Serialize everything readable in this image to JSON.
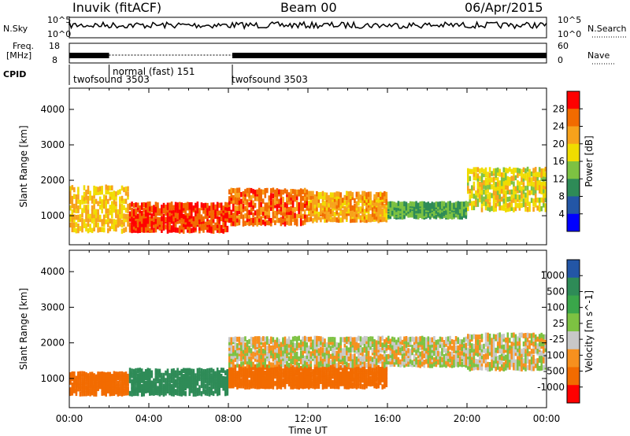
{
  "header": {
    "station": "Inuvik (fitACF)",
    "beam": "Beam 00",
    "date": "06/Apr/2015"
  },
  "panels": {
    "nsky_label": "N.Sky",
    "nsky_ticks": [
      "10^5",
      "10^0"
    ],
    "nsearch_label": "N.Search",
    "freq_label_line1": "Freq.",
    "freq_label_line2": "[MHz]",
    "freq_ticks_left": [
      "18",
      "8"
    ],
    "nave_ticks_right": [
      "60",
      "0"
    ],
    "nave_label": "Nave",
    "cpid_label": "CPID",
    "cpid_segments": [
      "twofsound 3503",
      "normal (fast) 151",
      "twofsound 3503"
    ]
  },
  "colors": {
    "power": [
      "#0000ff",
      "#2356a6",
      "#2e8b57",
      "#7dc242",
      "#f0dc00",
      "#f7a21b",
      "#f26b00",
      "#ff0000"
    ],
    "velocity": [
      "#ff0000",
      "#f26b00",
      "#f7901e",
      "#c8c8c8",
      "#c8c8c8",
      "#7dc242",
      "#2e8b57",
      "#2356a6",
      "#0000ff"
    ]
  },
  "chart_data": [
    {
      "type": "heatmap",
      "title": "Power",
      "ylabel": "Slant Range [km]",
      "xlabel": "",
      "xlim": [
        0,
        24
      ],
      "ylim": [
        180,
        4600
      ],
      "yticks": [
        "1000",
        "2000",
        "3000",
        "4000"
      ],
      "colorbar_label": "Power [dB]",
      "colorbar_ticks": [
        "4",
        "8",
        "12",
        "16",
        "20",
        "24",
        "28"
      ],
      "colorbar_range": [
        0,
        32
      ],
      "bands": [
        {
          "t": [
            0,
            3
          ],
          "range": [
            500,
            1800
          ],
          "value": 20
        },
        {
          "t": [
            3,
            8
          ],
          "range": [
            500,
            1300
          ],
          "value": 28
        },
        {
          "t": [
            8,
            12
          ],
          "range": [
            700,
            1700
          ],
          "value": 26
        },
        {
          "t": [
            12,
            16
          ],
          "range": [
            800,
            1600
          ],
          "value": 22
        },
        {
          "t": [
            16,
            20
          ],
          "range": [
            900,
            1300
          ],
          "value": 12
        },
        {
          "t": [
            20,
            24
          ],
          "range": [
            1100,
            2300
          ],
          "value": 18
        }
      ]
    },
    {
      "type": "heatmap",
      "title": "Velocity",
      "ylabel": "Slant Range [km]",
      "xlabel": "Time UT",
      "xlim": [
        0,
        24
      ],
      "ylim": [
        180,
        4600
      ],
      "xticks": [
        "00:00",
        "04:00",
        "08:00",
        "12:00",
        "16:00",
        "20:00",
        "00:00"
      ],
      "yticks": [
        "1000",
        "2000",
        "3000",
        "4000"
      ],
      "colorbar_label": "Velocity [m s^-1]",
      "colorbar_ticks": [
        "1000",
        "500",
        "100",
        "25",
        "-25",
        "-100",
        "-500",
        "-1000"
      ],
      "bands": [
        {
          "t": [
            0,
            3
          ],
          "range": [
            500,
            1100
          ],
          "value": -300
        },
        {
          "t": [
            3,
            8
          ],
          "range": [
            500,
            1200
          ],
          "value": 200
        },
        {
          "t": [
            8,
            16
          ],
          "range": [
            700,
            1300
          ],
          "value": -400
        },
        {
          "t": [
            8,
            20
          ],
          "range": [
            1300,
            2100
          ],
          "value": 0
        },
        {
          "t": [
            20,
            24
          ],
          "range": [
            1200,
            2200
          ],
          "value": 0
        }
      ]
    }
  ]
}
